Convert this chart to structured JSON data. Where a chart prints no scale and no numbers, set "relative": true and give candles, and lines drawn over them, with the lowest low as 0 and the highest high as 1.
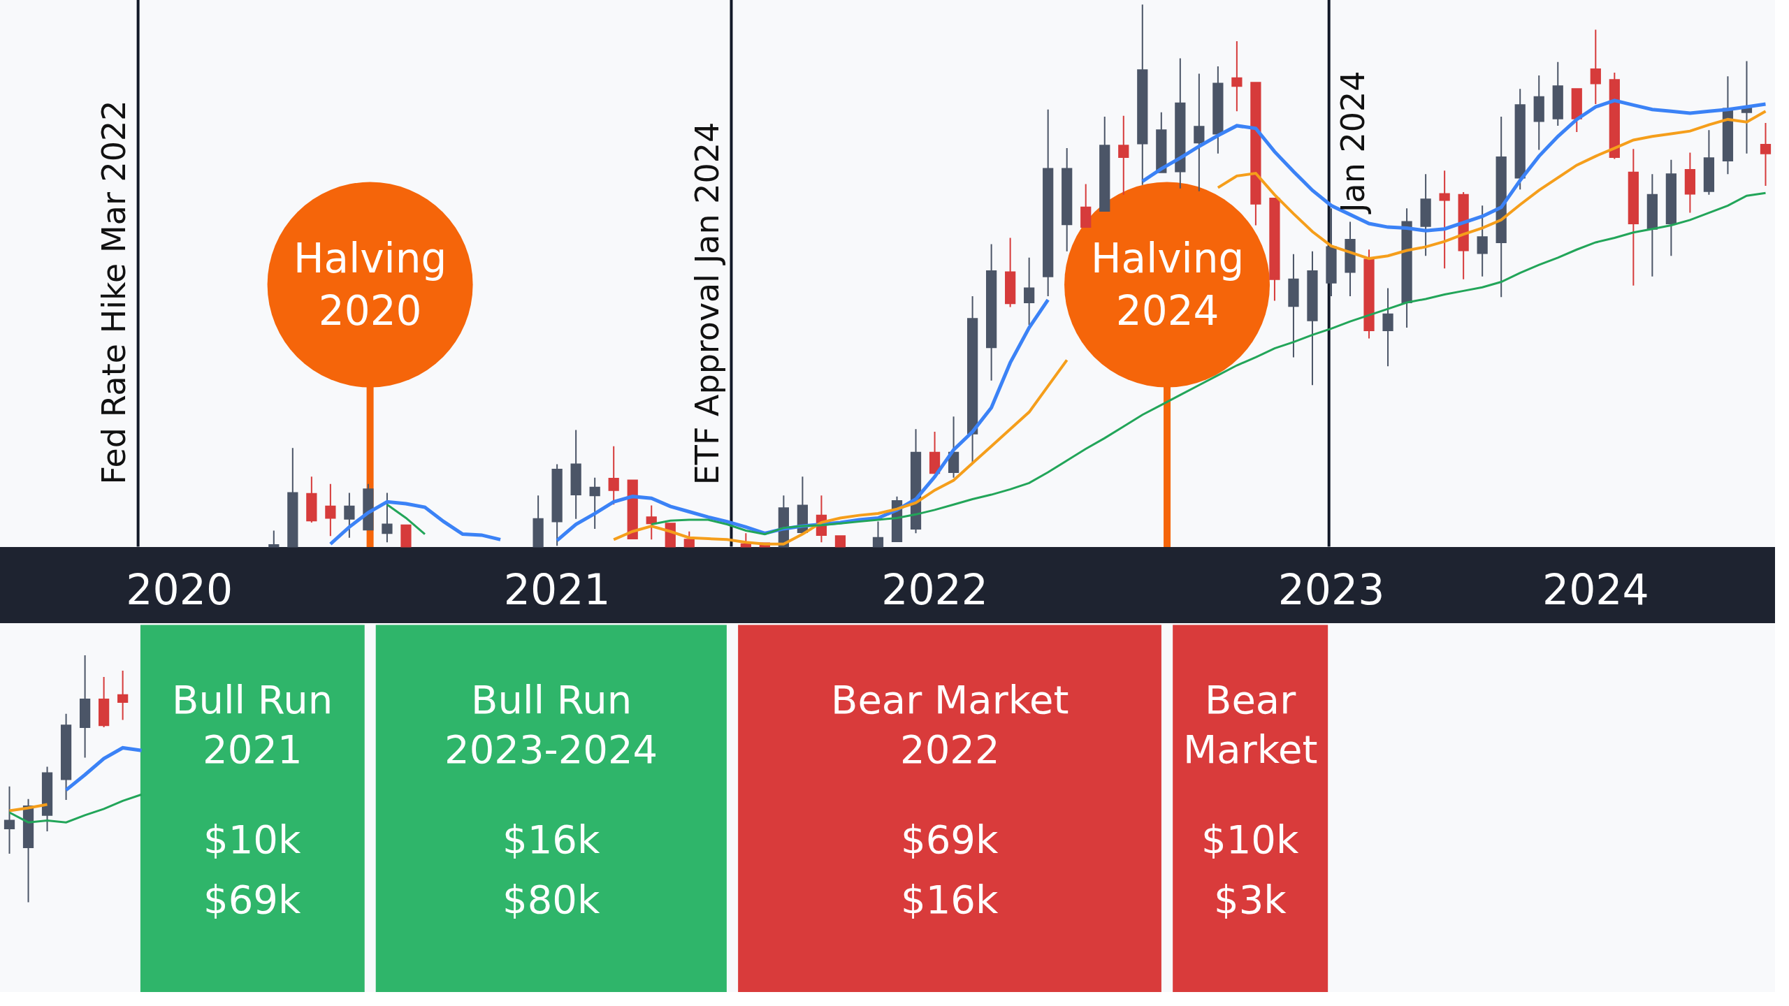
{
  "chart_data": {
    "type": "candlestick",
    "relative": true,
    "categories": [
      null,
      null,
      null,
      null,
      null,
      null,
      null,
      null,
      null,
      "2020",
      null,
      null,
      null,
      null,
      null,
      null,
      null,
      null,
      null,
      null,
      null,
      null,
      null,
      null,
      null,
      null,
      null,
      null,
      null,
      "2021",
      null,
      null,
      null,
      null,
      null,
      null,
      null,
      null,
      null,
      null,
      null,
      null,
      null,
      null,
      null,
      null,
      null,
      null,
      null,
      "2022",
      null,
      null,
      null,
      null,
      null,
      null,
      null,
      null,
      null,
      null,
      null,
      null,
      null,
      null,
      null,
      null,
      null,
      null,
      null,
      null,
      "2023",
      null,
      null,
      null,
      null,
      null,
      null,
      null,
      null,
      null,
      null,
      null,
      null,
      null,
      "2024",
      null,
      null,
      null,
      null,
      null,
      null,
      null,
      null,
      null
    ],
    "ohlc": [
      [
        0.082,
        0.129,
        0.054,
        0.091
      ],
      [
        0.061,
        0.115,
        0,
        0.107
      ],
      [
        0.097,
        0.151,
        0.079,
        0.144
      ],
      [
        0.137,
        0.21,
        0.114,
        0.197
      ],
      [
        0.195,
        0.275,
        0.161,
        0.226
      ],
      [
        0.226,
        0.251,
        0.195,
        0.197
      ],
      [
        0.231,
        0.258,
        0.203,
        0.223
      ],
      null,
      null,
      null,
      null,
      null,
      null,
      null,
      [
        0.396,
        0.414,
        0.396,
        0.398
      ],
      [
        0.396,
        0.506,
        0.396,
        0.456
      ],
      [
        0.455,
        0.474,
        0.423,
        0.425
      ],
      [
        0.441,
        0.466,
        0.408,
        0.428
      ],
      [
        0.427,
        0.456,
        0.406,
        0.441
      ],
      [
        0.415,
        0.466,
        0.415,
        0.46
      ],
      [
        0.411,
        0.456,
        0.401,
        0.421
      ],
      [
        0.42,
        0.42,
        0.396,
        0.396
      ],
      null,
      null,
      null,
      null,
      null,
      null,
      [
        0.396,
        0.453,
        0.396,
        0.427
      ],
      [
        0.424,
        0.488,
        0.397,
        0.482
      ],
      [
        0.454,
        0.526,
        0.427,
        0.488
      ],
      [
        0.453,
        0.473,
        0.416,
        0.462
      ],
      [
        0.472,
        0.508,
        0.443,
        0.459
      ],
      [
        0.47,
        0.47,
        0.405,
        0.405
      ],
      [
        0.429,
        0.442,
        0.404,
        0.422
      ],
      [
        0.422,
        0.422,
        0.396,
        0.396
      ],
      [
        0.404,
        0.413,
        0.396,
        0.396
      ],
      null,
      null,
      [
        0.399,
        0.411,
        0.396,
        0.396
      ],
      [
        0.4,
        0.4,
        0.396,
        0.396
      ],
      [
        0.396,
        0.453,
        0.396,
        0.439
      ],
      [
        0.412,
        0.474,
        0.409,
        0.442
      ],
      [
        0.431,
        0.453,
        0.401,
        0.409
      ],
      [
        0.408,
        0.408,
        0.396,
        0.396
      ],
      null,
      [
        0.396,
        0.424,
        0.396,
        0.406
      ],
      [
        0.402,
        0.452,
        0.402,
        0.447
      ],
      [
        0.416,
        0.527,
        0.411,
        0.501
      ],
      [
        0.501,
        0.524,
        0.478,
        0.478
      ],
      [
        0.479,
        0.541,
        0.473,
        0.501
      ],
      [
        0.522,
        0.675,
        0.489,
        0.65
      ],
      [
        0.618,
        0.733,
        0.581,
        0.703
      ],
      [
        0.702,
        0.74,
        0.663,
        0.667
      ],
      [
        0.668,
        0.718,
        0.643,
        0.684
      ],
      [
        0.697,
        0.883,
        0.675,
        0.817
      ],
      [
        0.755,
        0.84,
        0.725,
        0.817
      ],
      [
        0.774,
        0.8,
        0.752,
        0.752
      ],
      [
        0.77,
        0.875,
        0.77,
        0.843
      ],
      [
        0.843,
        0.876,
        0.788,
        0.83
      ],
      [
        0.845,
        1,
        0.799,
        0.927
      ],
      [
        0.813,
        0.88,
        0.813,
        0.86
      ],
      [
        0.814,
        0.94,
        0.795,
        0.89
      ],
      [
        0.846,
        0.923,
        0.792,
        0.864
      ],
      [
        0.856,
        0.931,
        0.834,
        0.912
      ],
      [
        0.918,
        0.959,
        0.881,
        0.909
      ],
      [
        0.913,
        0.913,
        0.754,
        0.778
      ],
      [
        0.784,
        0.784,
        0.67,
        0.694
      ],
      [
        0.664,
        0.722,
        0.607,
        0.694
      ],
      [
        0.648,
        0.725,
        0.576,
        0.703
      ],
      [
        0.69,
        0.773,
        0.675,
        0.73
      ],
      [
        0.702,
        0.758,
        0.675,
        0.738
      ],
      [
        0.716,
        0.727,
        0.628,
        0.637
      ],
      [
        0.637,
        0.684,
        0.597,
        0.655
      ],
      [
        0.668,
        0.773,
        0.64,
        0.758
      ],
      [
        0.753,
        0.811,
        0.72,
        0.783
      ],
      [
        0.789,
        0.815,
        0.706,
        0.782
      ],
      [
        0.788,
        0.791,
        0.694,
        0.726
      ],
      [
        0.723,
        0.776,
        0.697,
        0.741
      ],
      [
        0.735,
        0.875,
        0.674,
        0.83
      ],
      [
        0.807,
        0.906,
        0.794,
        0.888
      ],
      [
        0.87,
        0.921,
        0.838,
        0.897
      ],
      [
        0.873,
        0.936,
        0.865,
        0.909
      ],
      [
        0.906,
        0.906,
        0.858,
        0.873
      ],
      [
        0.928,
        0.972,
        0.889,
        0.912
      ],
      [
        0.916,
        0.924,
        0.828,
        0.83
      ],
      [
        0.813,
        0.839,
        0.687,
        0.756
      ],
      [
        0.75,
        0.811,
        0.697,
        0.788
      ],
      [
        0.756,
        0.827,
        0.72,
        0.811
      ],
      [
        0.816,
        0.835,
        0.768,
        0.789
      ],
      [
        0.792,
        0.86,
        0.788,
        0.829
      ],
      [
        0.826,
        0.92,
        0.811,
        0.884
      ],
      [
        0.88,
        0.937,
        0.834,
        0.886
      ],
      [
        0.844,
        0.868,
        0.798,
        0.834
      ]
    ],
    "colors": [
      "#4b5567",
      "#4b5567",
      "#4b5567",
      "#4b5567",
      "#4b5567",
      "#d63b3b",
      "#d63b3b",
      null,
      null,
      null,
      null,
      null,
      null,
      null,
      "#4b5567",
      "#4b5567",
      "#d63b3b",
      "#d63b3b",
      "#4b5567",
      "#4b5567",
      "#4b5567",
      "#d63b3b",
      null,
      null,
      null,
      null,
      null,
      null,
      "#4b5567",
      "#4b5567",
      "#4b5567",
      "#4b5567",
      "#d63b3b",
      "#d63b3b",
      "#d63b3b",
      "#d63b3b",
      "#d63b3b",
      null,
      null,
      "#d63b3b",
      "#d63b3b",
      "#4b5567",
      "#4b5567",
      "#d63b3b",
      "#d63b3b",
      null,
      "#4b5567",
      "#4b5567",
      "#4b5567",
      "#d63b3b",
      "#4b5567",
      "#4b5567",
      "#4b5567",
      "#d63b3b",
      "#4b5567",
      "#4b5567",
      "#4b5567",
      "#d63b3b",
      "#4b5567",
      "#d63b3b",
      "#4b5567",
      "#4b5567",
      "#4b5567",
      "#4b5567",
      "#4b5567",
      "#d63b3b",
      "#d63b3b",
      "#d63b3b",
      "#4b5567",
      "#4b5567",
      "#4b5567",
      "#4b5567",
      "#d63b3b",
      "#4b5567",
      "#4b5567",
      "#4b5567",
      "#d63b3b",
      "#d63b3b",
      "#4b5567",
      "#4b5567",
      "#4b5567",
      "#4b5567",
      "#4b5567",
      "#d63b3b",
      "#d63b3b",
      "#d63b3b",
      "#d63b3b",
      "#4b5567",
      "#4b5567",
      "#d63b3b",
      "#4b5567",
      "#4b5567",
      "#4b5567",
      "#d63b3b"
    ],
    "series": [
      {
        "type": "line",
        "color": "#3b82f6",
        "values": [
          null,
          null,
          null,
          0.125,
          0.142,
          0.16,
          0.172,
          0.169,
          null,
          null,
          null,
          null,
          null,
          null,
          null,
          null,
          null,
          0.399,
          0.418,
          0.434,
          0.446,
          0.444,
          0.44,
          0.424,
          0.41,
          0.409,
          0.404,
          null,
          null,
          0.403,
          0.421,
          0.433,
          0.446,
          0.452,
          0.45,
          0.441,
          0.435,
          0.429,
          0.424,
          0.418,
          0.411,
          0.416,
          0.419,
          0.421,
          0.423,
          0.426,
          0.428,
          0.437,
          0.449,
          0.474,
          0.504,
          0.524,
          0.551,
          0.601,
          0.64,
          0.671,
          null,
          null,
          null,
          null,
          0.803,
          0.817,
          0.829,
          0.842,
          0.854,
          0.865,
          0.862,
          0.836,
          0.814,
          0.793,
          0.776,
          0.766,
          0.756,
          0.752,
          0.751,
          0.748,
          0.75,
          0.757,
          0.764,
          0.774,
          0.804,
          0.831,
          0.853,
          0.872,
          0.886,
          0.893,
          0.888,
          0.883,
          0.881,
          0.879,
          0.881,
          0.883,
          0.886,
          0.889
        ]
      },
      {
        "type": "line",
        "color": "#f59e1b",
        "values": [
          0.102,
          0.105,
          0.109,
          null,
          null,
          null,
          null,
          null,
          null,
          null,
          null,
          null,
          null,
          null,
          null,
          null,
          null,
          null,
          null,
          null,
          null,
          null,
          null,
          null,
          null,
          null,
          null,
          null,
          null,
          null,
          null,
          null,
          0.404,
          0.413,
          0.419,
          0.413,
          0.406,
          0.405,
          0.404,
          0.401,
          0.399,
          0.399,
          0.41,
          0.423,
          0.428,
          0.431,
          0.433,
          0.438,
          0.445,
          0.459,
          0.47,
          0.489,
          0.508,
          0.527,
          0.546,
          0.575,
          0.604,
          null,
          null,
          null,
          null,
          null,
          null,
          null,
          0.796,
          0.809,
          0.812,
          0.788,
          0.767,
          0.747,
          0.731,
          0.724,
          0.717,
          0.72,
          0.726,
          0.73,
          0.736,
          0.744,
          0.751,
          0.76,
          0.777,
          0.793,
          0.807,
          0.821,
          0.831,
          0.84,
          0.849,
          0.853,
          0.856,
          0.859,
          0.866,
          0.872,
          0.869,
          0.881
        ]
      },
      {
        "type": "line",
        "color": "#22a559",
        "values": [
          0.1,
          0.089,
          0.091,
          0.089,
          0.097,
          0.104,
          0.113,
          0.12,
          null,
          null,
          null,
          null,
          null,
          null,
          null,
          null,
          null,
          null,
          null,
          null,
          0.443,
          0.428,
          0.41,
          null,
          null,
          null,
          null,
          null,
          null,
          null,
          null,
          null,
          null,
          null,
          0.421,
          0.425,
          0.426,
          0.426,
          0.421,
          0.414,
          0.41,
          0.417,
          0.419,
          0.42,
          0.422,
          0.424,
          0.426,
          0.428,
          0.432,
          0.437,
          0.443,
          0.449,
          0.454,
          0.46,
          0.467,
          0.479,
          0.492,
          0.505,
          0.517,
          0.53,
          0.543,
          0.554,
          0.565,
          0.576,
          0.587,
          0.598,
          0.607,
          0.617,
          0.624,
          0.632,
          0.639,
          0.647,
          0.654,
          0.661,
          0.668,
          0.672,
          0.677,
          0.681,
          0.685,
          0.691,
          0.701,
          0.71,
          0.718,
          0.727,
          0.735,
          0.74,
          0.746,
          0.75,
          0.754,
          0.76,
          0.768,
          0.776,
          0.787,
          0.79
        ]
      }
    ],
    "annotations": [
      "Fed Rate Hike Mar 2022",
      "ETF Approval Jan 2024",
      "Jan 2024",
      "Halving\n2020",
      "Halving\n2024",
      "Bull Run\n2021\n$10k\n$69k",
      "Bull Run\n2023-2024\n$16k\n$80k",
      "Bear Market\n2022\n$69k\n$16k",
      "Bear\nMarket\n$10k\n$3k"
    ]
  }
}
